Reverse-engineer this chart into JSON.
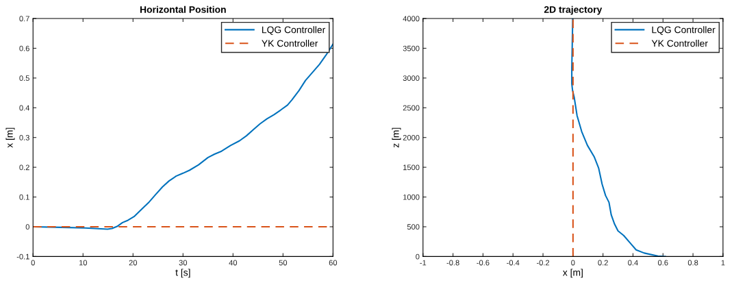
{
  "chart_data": [
    {
      "type": "line",
      "title": "Horizontal Position",
      "xlabel": "t [s]",
      "ylabel": "x [m]",
      "xlim": [
        0,
        60
      ],
      "xticks": [
        0,
        10,
        20,
        30,
        40,
        50,
        60
      ],
      "ylim": [
        -0.1,
        0.7
      ],
      "yticks": [
        -0.1,
        0,
        0.1,
        0.2,
        0.3,
        0.4,
        0.5,
        0.6,
        0.7
      ],
      "grid": false,
      "legend": "top right",
      "series": [
        {
          "name": "LQG Controller",
          "color": "#0072bd",
          "line_style": "solid",
          "x": [
            0,
            5.8,
            10.4,
            14.9,
            15.8,
            16.8,
            17.9,
            19.0,
            20.2,
            21.5,
            23.1,
            24.5,
            25.9,
            27.2,
            28.6,
            30,
            31.3,
            33.1,
            35,
            36.3,
            37.7,
            39.5,
            41.3,
            42.7,
            44.1,
            45.4,
            46.8,
            48.2,
            49.5,
            50.9,
            51.8,
            53.2,
            54.5,
            55.9,
            57.3,
            58.6,
            60
          ],
          "values": [
            0,
            -0.002,
            -0.004,
            -0.008,
            -0.006,
            0.001,
            0.014,
            0.022,
            0.034,
            0.055,
            0.081,
            0.108,
            0.134,
            0.154,
            0.17,
            0.18,
            0.19,
            0.208,
            0.233,
            0.244,
            0.254,
            0.273,
            0.289,
            0.306,
            0.327,
            0.346,
            0.363,
            0.377,
            0.392,
            0.409,
            0.427,
            0.458,
            0.492,
            0.519,
            0.546,
            0.577,
            0.614
          ]
        },
        {
          "name": "YK Controller",
          "color": "#d95319",
          "line_style": "dashed",
          "x": [
            0,
            60
          ],
          "values": [
            0,
            0
          ]
        }
      ]
    },
    {
      "type": "line",
      "title": "2D trajectory",
      "xlabel": "x [m]",
      "ylabel": "z [m]",
      "xlim": [
        -1,
        1
      ],
      "xticks": [
        -1,
        -0.8,
        -0.6,
        -0.4,
        -0.2,
        0,
        0.2,
        0.4,
        0.6,
        0.8,
        1
      ],
      "ylim": [
        0,
        4000
      ],
      "yticks": [
        0,
        500,
        1000,
        1500,
        2000,
        2500,
        3000,
        3500,
        4000
      ],
      "grid": false,
      "legend": "top right",
      "series": [
        {
          "name": "LQG Controller",
          "color": "#0072bd",
          "line_style": "solid",
          "x": [
            0.616,
            0.566,
            0.475,
            0.421,
            0.384,
            0.338,
            0.3,
            0.277,
            0.255,
            0.24,
            0.217,
            0.194,
            0.171,
            0.141,
            0.096,
            0.058,
            0.027,
            0.008,
            -0.003,
            -0.008,
            -0.008,
            -0.005,
            -0.002
          ],
          "values": [
            0,
            8,
            58,
            111,
            219,
            353,
            430,
            545,
            699,
            910,
            1025,
            1217,
            1486,
            1678,
            1869,
            2100,
            2369,
            2676,
            2791,
            2906,
            3175,
            3559,
            4000
          ]
        },
        {
          "name": "YK Controller",
          "color": "#d95319",
          "line_style": "dashed",
          "x": [
            0,
            0
          ],
          "values": [
            0,
            4000
          ]
        }
      ]
    }
  ]
}
